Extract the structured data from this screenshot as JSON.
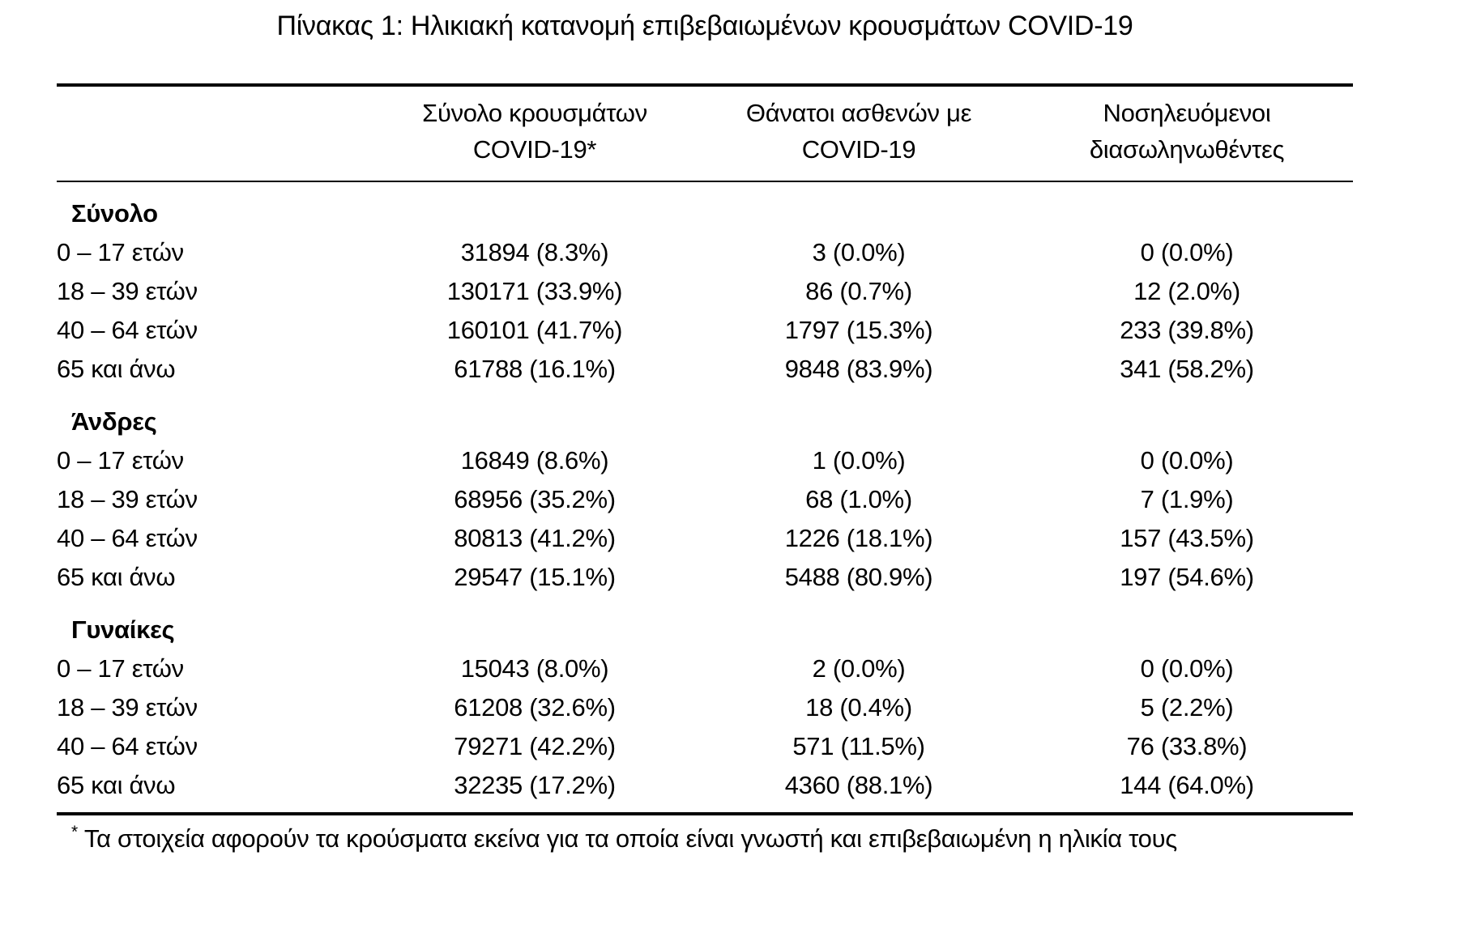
{
  "page": {
    "title": "Πίνακας 1: Ηλικιακή κατανομή επιβεβαιωμένων κρουσμάτων COVID-19"
  },
  "table": {
    "columns": {
      "cases": {
        "line1": "Σύνολο κρουσμάτων",
        "line2": "COVID-19*"
      },
      "deaths": {
        "line1": "Θάνατοι ασθενών με",
        "line2": "COVID-19"
      },
      "intubated": {
        "line1": "Νοσηλευόμενοι",
        "line2": "διασωληνωθέντες"
      }
    },
    "sections": [
      {
        "label": "Σύνολο",
        "rows": [
          {
            "age": "0 – 17 ετών",
            "cases": "31894 (8.3%)",
            "deaths": "3 (0.0%)",
            "intubated": "0 (0.0%)"
          },
          {
            "age": "18 – 39 ετών",
            "cases": "130171 (33.9%)",
            "deaths": "86 (0.7%)",
            "intubated": "12 (2.0%)"
          },
          {
            "age": "40 – 64 ετών",
            "cases": "160101 (41.7%)",
            "deaths": "1797 (15.3%)",
            "intubated": "233 (39.8%)"
          },
          {
            "age": "65 και άνω",
            "cases": "61788 (16.1%)",
            "deaths": "9848 (83.9%)",
            "intubated": "341 (58.2%)"
          }
        ]
      },
      {
        "label": "Άνδρες",
        "rows": [
          {
            "age": "0 – 17 ετών",
            "cases": "16849 (8.6%)",
            "deaths": "1 (0.0%)",
            "intubated": "0 (0.0%)"
          },
          {
            "age": "18 – 39 ετών",
            "cases": "68956 (35.2%)",
            "deaths": "68 (1.0%)",
            "intubated": "7 (1.9%)"
          },
          {
            "age": "40 – 64 ετών",
            "cases": "80813 (41.2%)",
            "deaths": "1226 (18.1%)",
            "intubated": "157 (43.5%)"
          },
          {
            "age": "65 και άνω",
            "cases": "29547 (15.1%)",
            "deaths": "5488 (80.9%)",
            "intubated": "197 (54.6%)"
          }
        ]
      },
      {
        "label": "Γυναίκες",
        "rows": [
          {
            "age": "0 – 17 ετών",
            "cases": "15043 (8.0%)",
            "deaths": "2 (0.0%)",
            "intubated": "0 (0.0%)"
          },
          {
            "age": "18 – 39 ετών",
            "cases": "61208 (32.6%)",
            "deaths": "18 (0.4%)",
            "intubated": "5 (2.2%)"
          },
          {
            "age": "40 – 64 ετών",
            "cases": "79271 (42.2%)",
            "deaths": "571 (11.5%)",
            "intubated": "76 (33.8%)"
          },
          {
            "age": "65 και άνω",
            "cases": "32235 (17.2%)",
            "deaths": "4360 (88.1%)",
            "intubated": "144 (64.0%)"
          }
        ]
      }
    ]
  },
  "footnote": {
    "marker": "*",
    "text": "Τα στοιχεία αφορούν τα κρούσματα εκείνα για τα οποία είναι γνωστή και επιβεβαιωμένη η ηλικία τους"
  }
}
